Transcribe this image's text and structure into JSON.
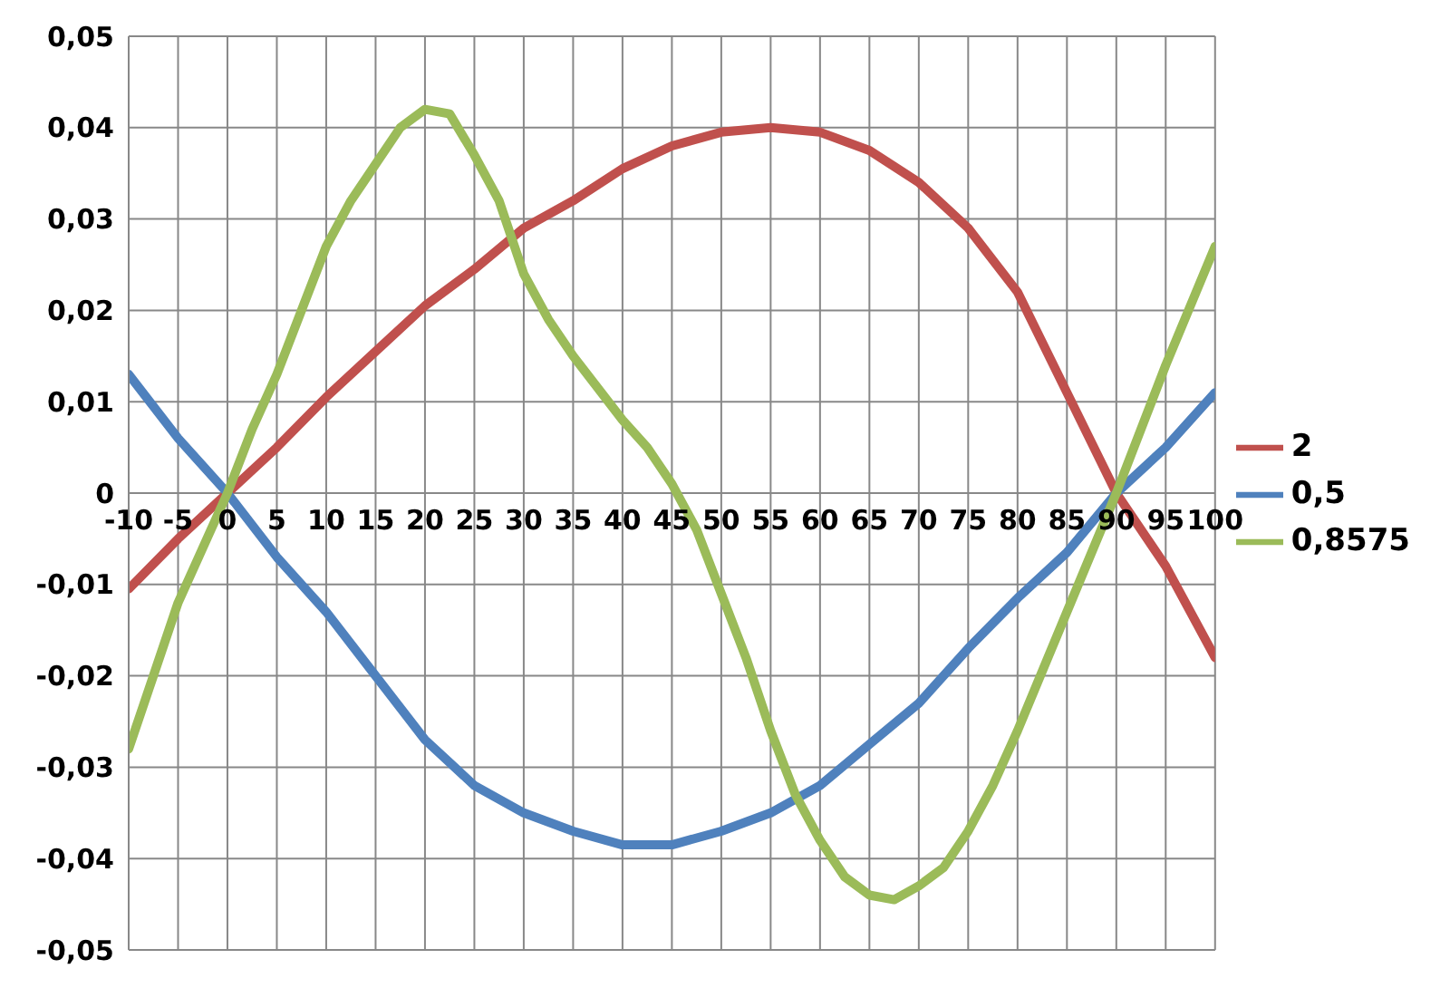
{
  "chart_data": {
    "type": "line",
    "grid": true,
    "legend": "right",
    "marker": "none",
    "line_style": "solid",
    "xlim": [
      -10,
      100
    ],
    "xticks": [
      -10,
      -5,
      0,
      5,
      10,
      15,
      20,
      25,
      30,
      35,
      40,
      45,
      50,
      55,
      60,
      65,
      70,
      75,
      80,
      85,
      90,
      95,
      100
    ],
    "ylim": [
      -0.05,
      0.05
    ],
    "yticks": [
      {
        "value": -0.05,
        "label": "-0,05"
      },
      {
        "value": -0.04,
        "label": "-0,04"
      },
      {
        "value": -0.03,
        "label": "-0,03"
      },
      {
        "value": -0.02,
        "label": "-0,02"
      },
      {
        "value": -0.01,
        "label": "-0,01"
      },
      {
        "value": 0,
        "label": "0"
      },
      {
        "value": 0.01,
        "label": "0,01"
      },
      {
        "value": 0.02,
        "label": "0,02"
      },
      {
        "value": 0.03,
        "label": "0,03"
      },
      {
        "value": 0.04,
        "label": "0,04"
      },
      {
        "value": 0.05,
        "label": "0,05"
      }
    ],
    "series": [
      {
        "name": "2",
        "color": "#c0504d",
        "x": [
          -10,
          -5,
          0,
          5,
          10,
          15,
          20,
          25,
          30,
          35,
          40,
          45,
          50,
          55,
          60,
          65,
          70,
          75,
          80,
          85,
          90,
          95,
          100
        ],
        "values": [
          -0.0105,
          -0.005,
          0,
          0.005,
          0.0105,
          0.0155,
          0.0205,
          0.0245,
          0.029,
          0.032,
          0.0355,
          0.038,
          0.0395,
          0.04,
          0.0395,
          0.0375,
          0.034,
          0.029,
          0.022,
          0.011,
          0,
          -0.008,
          -0.018
        ]
      },
      {
        "name": "0,5",
        "color": "#4f81bd",
        "x": [
          -10,
          -5,
          0,
          5,
          10,
          15,
          20,
          25,
          30,
          35,
          40,
          45,
          50,
          55,
          60,
          65,
          70,
          75,
          80,
          85,
          90,
          95,
          100
        ],
        "values": [
          0.013,
          0.006,
          0,
          -0.007,
          -0.013,
          -0.02,
          -0.027,
          -0.032,
          -0.035,
          -0.037,
          -0.0385,
          -0.0385,
          -0.037,
          -0.035,
          -0.032,
          -0.0275,
          -0.023,
          -0.017,
          -0.0115,
          -0.0065,
          0,
          0.005,
          0.011
        ]
      },
      {
        "name": "0,8575",
        "color": "#9bbb59",
        "x": [
          -10,
          -7.5,
          -5,
          -2.5,
          0,
          2.5,
          5,
          7.5,
          10,
          12.5,
          15,
          17.5,
          20,
          22.5,
          25,
          27.5,
          30,
          32.5,
          35,
          40,
          42.5,
          45,
          47.5,
          50,
          52.5,
          55,
          57.5,
          60,
          62.5,
          65,
          67.5,
          70,
          72.5,
          75,
          77.5,
          80,
          85,
          90,
          95,
          100
        ],
        "values": [
          -0.028,
          -0.02,
          -0.012,
          -0.006,
          0,
          0.007,
          0.013,
          0.02,
          0.027,
          0.032,
          0.036,
          0.04,
          0.042,
          0.0415,
          0.037,
          0.032,
          0.024,
          0.019,
          0.015,
          0.008,
          0.005,
          0.001,
          -0.004,
          -0.011,
          -0.018,
          -0.026,
          -0.033,
          -0.038,
          -0.042,
          -0.044,
          -0.0445,
          -0.043,
          -0.041,
          -0.037,
          -0.032,
          -0.026,
          -0.013,
          0,
          0.014,
          0.027
        ]
      }
    ]
  }
}
